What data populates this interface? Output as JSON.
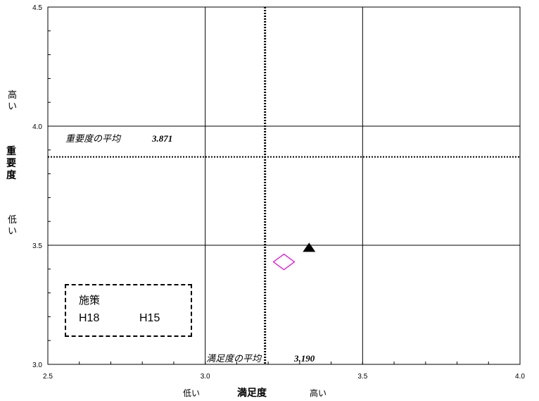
{
  "chart_data": {
    "type": "scatter",
    "xlim": [
      2.5,
      4.0
    ],
    "ylim": [
      3.0,
      4.5
    ],
    "x_ticks": [
      "2.5",
      "3.0",
      "3.5",
      "4.0"
    ],
    "y_ticks": [
      "3.0",
      "3.5",
      "4.0",
      "4.5"
    ],
    "grid": true,
    "series": [
      {
        "name": "H18",
        "marker": "diamond",
        "color": "#e000e0",
        "points": [
          [
            3.25,
            3.43
          ]
        ]
      },
      {
        "name": "H15",
        "marker": "triangle",
        "color": "#000000",
        "points": [
          [
            3.33,
            3.49
          ]
        ]
      }
    ],
    "reference_lines": {
      "importance_mean": {
        "label": "重要度の平均",
        "value_text": "3.871",
        "value": 3.871
      },
      "satisfaction_mean": {
        "label": "満足度の平均",
        "value_text": "3.190",
        "value": 3.19
      }
    },
    "xlabel": "満足度",
    "x_low_label": "低い",
    "x_high_label": "高い",
    "ylabel": "重要度",
    "y_high_label": "高\nい",
    "y_low_label": "低\nい",
    "legend": {
      "title": "施策",
      "placement": "bottom-left",
      "items": [
        "H18",
        "H15"
      ]
    }
  }
}
